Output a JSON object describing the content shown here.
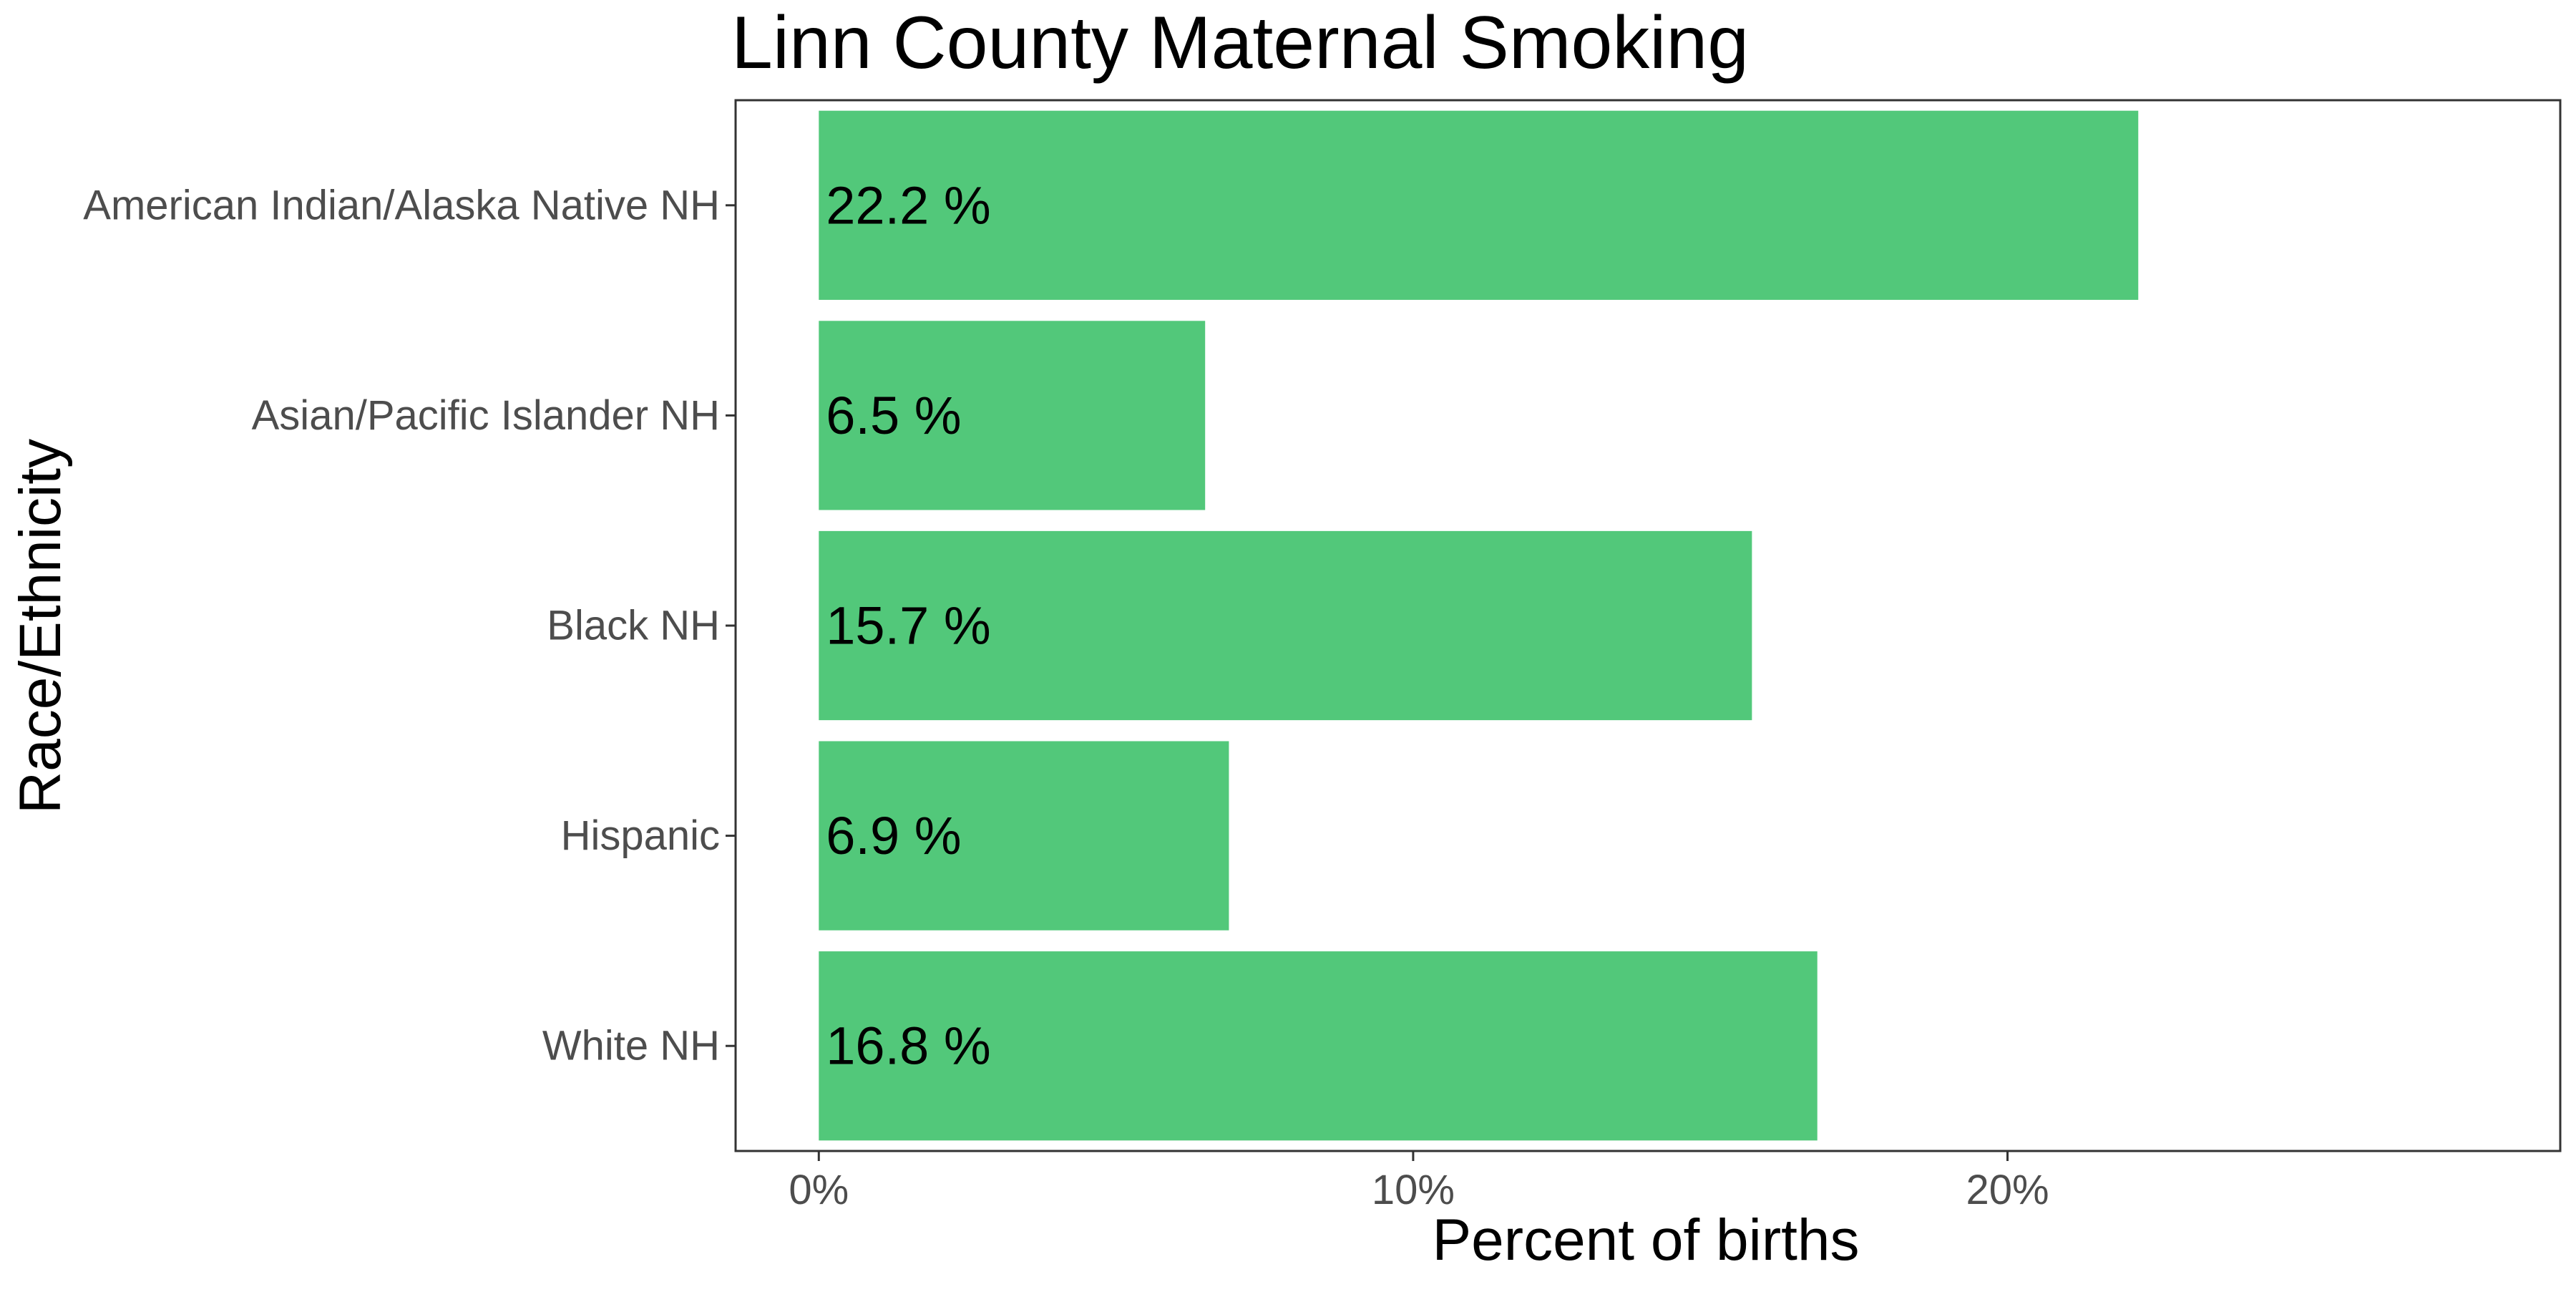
{
  "chart_data": {
    "type": "bar",
    "orientation": "horizontal",
    "title": "Linn County Maternal Smoking",
    "xlabel": "Percent of births",
    "ylabel": "Race/Ethnicity",
    "categories": [
      "American Indian/Alaska Native NH",
      "Asian/Pacific Islander NH",
      "Black NH",
      "Hispanic",
      "White NH"
    ],
    "values": [
      22.2,
      6.5,
      15.7,
      6.9,
      16.8
    ],
    "data_labels": [
      "22.2 %",
      "6.5 %",
      "15.7 %",
      "6.9 %",
      "16.8 %"
    ],
    "x_ticks": [
      0,
      10,
      20
    ],
    "x_tick_labels": [
      "0%",
      "10%",
      "20%"
    ],
    "xlim": [
      -1.4,
      29.3
    ],
    "grid": false,
    "legend": "none",
    "bar_color": "#52c87a",
    "panel_border_color": "#333333"
  }
}
